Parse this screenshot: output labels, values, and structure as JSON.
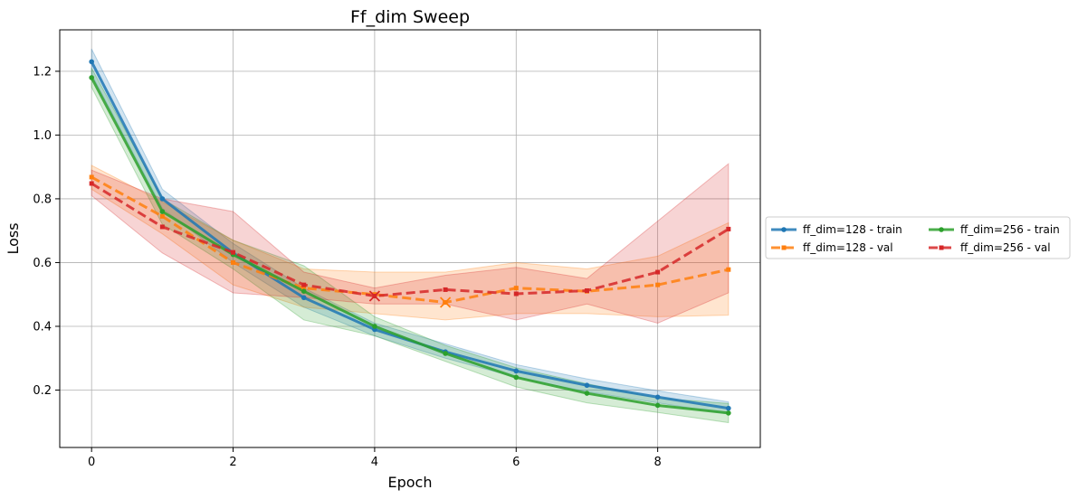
{
  "chart_data": {
    "type": "line",
    "title": "Ff_dim Sweep",
    "xlabel": "Epoch",
    "ylabel": "Loss",
    "xlim": [
      -0.45,
      9.45
    ],
    "ylim": [
      0.02,
      1.33
    ],
    "xticks": [
      0,
      2,
      4,
      6,
      8
    ],
    "yticks": [
      0.2,
      0.4,
      0.6,
      0.8,
      1.0,
      1.2
    ],
    "xtick_labels": [
      "0",
      "2",
      "4",
      "6",
      "8"
    ],
    "ytick_labels": [
      "0.2",
      "0.4",
      "0.6",
      "0.8",
      "1.0",
      "1.2"
    ],
    "grid": true,
    "legend_position": "right, outside plot",
    "x": [
      0,
      1,
      2,
      3,
      4,
      5,
      6,
      7,
      8,
      9
    ],
    "series": [
      {
        "name": "ff_dim=128 - train",
        "color": "#1f77b4",
        "style": "solid",
        "values": [
          1.23,
          0.8,
          0.63,
          0.49,
          0.39,
          0.32,
          0.26,
          0.215,
          0.178,
          0.143
        ],
        "lower": [
          1.19,
          0.77,
          0.6,
          0.46,
          0.37,
          0.3,
          0.24,
          0.195,
          0.16,
          0.125
        ],
        "upper": [
          1.27,
          0.83,
          0.66,
          0.52,
          0.41,
          0.345,
          0.28,
          0.235,
          0.198,
          0.163
        ]
      },
      {
        "name": "ff_dim=128 - val",
        "color": "#ff7f0e",
        "style": "dashed",
        "values": [
          0.868,
          0.745,
          0.6,
          0.52,
          0.5,
          0.475,
          0.52,
          0.51,
          0.53,
          0.578
        ],
        "lower": [
          0.83,
          0.69,
          0.53,
          0.46,
          0.44,
          0.42,
          0.44,
          0.44,
          0.43,
          0.435
        ],
        "upper": [
          0.905,
          0.79,
          0.67,
          0.58,
          0.57,
          0.57,
          0.6,
          0.58,
          0.62,
          0.725
        ],
        "best_marker": {
          "x": 5,
          "y": 0.475
        }
      },
      {
        "name": "ff_dim=256 - train",
        "color": "#2ca02c",
        "style": "solid",
        "values": [
          1.18,
          0.76,
          0.625,
          0.51,
          0.4,
          0.315,
          0.24,
          0.19,
          0.152,
          0.128
        ],
        "lower": [
          1.15,
          0.72,
          0.58,
          0.42,
          0.37,
          0.29,
          0.21,
          0.16,
          0.13,
          0.098
        ],
        "upper": [
          1.21,
          0.8,
          0.67,
          0.59,
          0.43,
          0.34,
          0.27,
          0.22,
          0.175,
          0.158
        ]
      },
      {
        "name": "ff_dim=256 - val",
        "color": "#d62728",
        "style": "dashed",
        "values": [
          0.848,
          0.712,
          0.632,
          0.53,
          0.495,
          0.515,
          0.502,
          0.512,
          0.57,
          0.705
        ],
        "lower": [
          0.81,
          0.63,
          0.505,
          0.49,
          0.47,
          0.47,
          0.42,
          0.47,
          0.41,
          0.505
        ],
        "upper": [
          0.89,
          0.8,
          0.76,
          0.57,
          0.52,
          0.56,
          0.585,
          0.55,
          0.73,
          0.91
        ],
        "best_marker": {
          "x": 4,
          "y": 0.495
        }
      }
    ],
    "legend_columns": [
      [
        "ff_dim=128 - train",
        "ff_dim=128 - val"
      ],
      [
        "ff_dim=256 - train",
        "ff_dim=256 - val"
      ]
    ]
  }
}
